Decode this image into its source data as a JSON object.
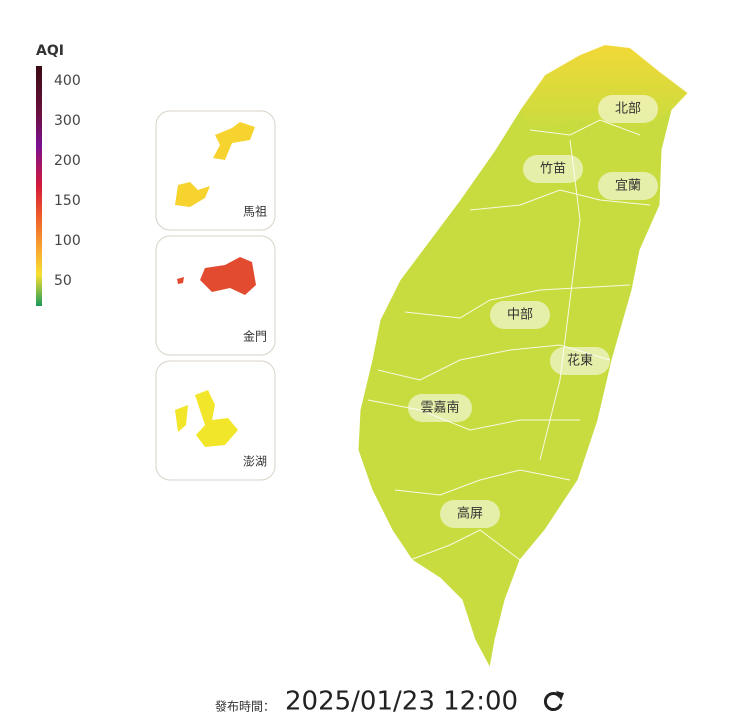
{
  "legend": {
    "title": "AQI",
    "ticks": [
      400,
      300,
      200,
      150,
      100,
      50
    ]
  },
  "islands": [
    {
      "label": "馬祖"
    },
    {
      "label": "金門"
    },
    {
      "label": "澎湖"
    }
  ],
  "regions": [
    {
      "label": "北部"
    },
    {
      "label": "竹苗"
    },
    {
      "label": "宜蘭"
    },
    {
      "label": "中部"
    },
    {
      "label": "花東"
    },
    {
      "label": "雲嘉南"
    },
    {
      "label": "高屏"
    }
  ],
  "footer": {
    "label": "發布時間：",
    "time": "2025/01/23 12:00"
  }
}
